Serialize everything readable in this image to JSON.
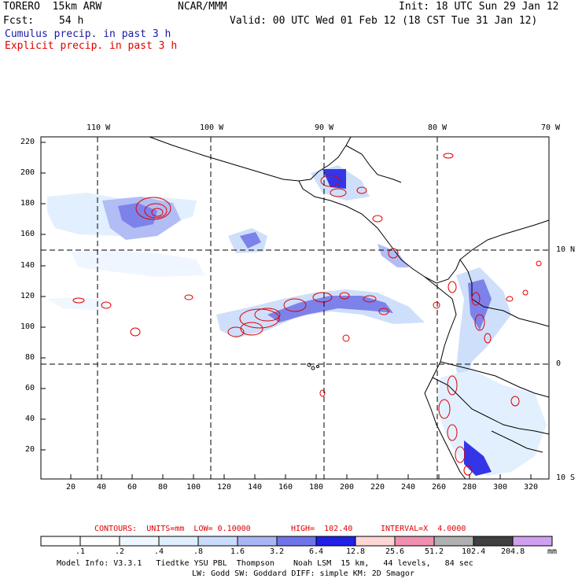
{
  "header": {
    "title": "TORERO  15km ARW",
    "org": "NCAR/MMM",
    "init": "Init: 18 UTC Sun 29 Jan 12",
    "fcst_label": "Fcst:",
    "fcst_value": "54 h",
    "valid": "Valid: 00 UTC Wed 01 Feb 12 (18 CST Tue 31 Jan 12)"
  },
  "legend_lines": {
    "cumulus": "Cumulus precip. in past 3 h",
    "explicit": "Explicit precip. in past 3 h"
  },
  "axes": {
    "top_lon": [
      "110 W",
      "100 W",
      "90 W",
      "80 W",
      "70 W"
    ],
    "right_lat": [
      "10 N",
      "0",
      "10 S"
    ],
    "left_y": [
      "220",
      "200",
      "180",
      "160",
      "140",
      "120",
      "100",
      "80",
      "60",
      "40",
      "20"
    ],
    "bottom_x": [
      "20",
      "40",
      "60",
      "80",
      "100",
      "120",
      "140",
      "160",
      "180",
      "200",
      "220",
      "240",
      "260",
      "280",
      "300",
      "320"
    ]
  },
  "contours_info": {
    "units": "CONTOURS:  UNITS=mm  LOW= 0.10000",
    "high": "HIGH=  102.40",
    "interval": "INTERVAL=X  4.0000"
  },
  "colorbar": {
    "labels": [
      ".1",
      ".2",
      ".4",
      ".8",
      "1.6",
      "3.2",
      "6.4",
      "12.8",
      "25.6",
      "51.2",
      "102.4",
      "204.8"
    ],
    "unit": "mm",
    "colors": [
      "#ffffff",
      "#ffffff",
      "#eef6ff",
      "#dfeefe",
      "#c9dcfb",
      "#a9b6f3",
      "#6f75e8",
      "#2020e6",
      "#ffd6d6",
      "#f090b0",
      "#b0b0b0",
      "#404040",
      "#d0a0f0"
    ]
  },
  "footer": {
    "line1": "Model Info: V3.3.1   Tiedtke YSU PBL  Thompson    Noah LSM  15 km,   44 levels,   84 sec",
    "line2": "LW: Godd SW: Goddard DIFF: simple KM: 2D Smagor"
  }
}
